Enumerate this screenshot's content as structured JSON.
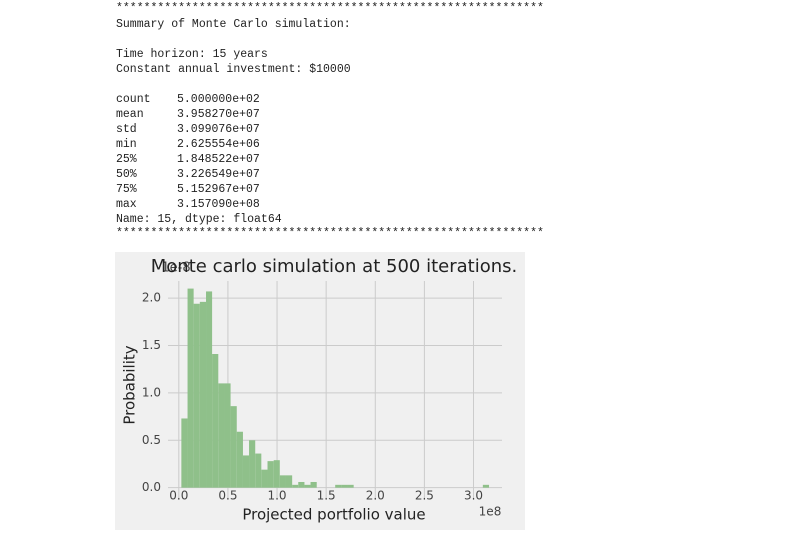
{
  "output": {
    "separator": "**************************************************************",
    "heading": "Summary of Monte Carlo simulation:",
    "horizon": "Time horizon: 15 years",
    "investment": "Constant annual investment: $10000",
    "stats": [
      [
        "count",
        "5.000000e+02"
      ],
      [
        "mean",
        "3.958270e+07"
      ],
      [
        "std",
        "3.099076e+07"
      ],
      [
        "min",
        "2.625554e+06"
      ],
      [
        "25%",
        "1.848522e+07"
      ],
      [
        "50%",
        "3.226549e+07"
      ],
      [
        "75%",
        "5.152967e+07"
      ],
      [
        "max",
        "3.157090e+08"
      ]
    ],
    "footer": "Name: 15, dtype: float64"
  },
  "chart_data": {
    "type": "histogram",
    "title": "Monte carlo simulation at 500 iterations.",
    "x_label": "Projected portfolio value",
    "y_label": "Probability",
    "x_offset_label": "1e8",
    "y_offset_label": "1e-8",
    "color": "#8fc08a",
    "grid": true,
    "bins": [
      0.026,
      0.089,
      0.151,
      0.214,
      0.277,
      0.339,
      0.402,
      0.465,
      0.527,
      0.59,
      0.653,
      0.715,
      0.778,
      0.84,
      0.903,
      0.966,
      1.028,
      1.091,
      1.154,
      1.216,
      1.279,
      1.341,
      1.404,
      1.467,
      1.529,
      1.592,
      1.655,
      1.717,
      1.78,
      1.842,
      1.905,
      1.968,
      2.03,
      2.093,
      2.156,
      2.218,
      2.281,
      2.344,
      2.406,
      2.469,
      2.531,
      2.594,
      2.657,
      2.719,
      2.782,
      2.845,
      2.907,
      2.97,
      3.033,
      3.095,
      3.158
    ],
    "values": [
      0.73,
      2.1,
      1.94,
      1.96,
      2.07,
      1.41,
      1.1,
      1.1,
      0.86,
      0.59,
      0.34,
      0.5,
      0.36,
      0.19,
      0.28,
      0.29,
      0.13,
      0.13,
      0.03,
      0.06,
      0.03,
      0.06,
      0,
      0,
      0,
      0.03,
      0.03,
      0.03,
      0,
      0,
      0,
      0,
      0,
      0,
      0,
      0,
      0,
      0,
      0,
      0,
      0,
      0,
      0,
      0,
      0,
      0,
      0,
      0,
      0,
      0.03
    ],
    "xlim": [
      -0.11,
      3.29
    ],
    "ylim": [
      -0.13,
      2.18
    ],
    "xticks": [
      {
        "value": 0,
        "label": "0.0"
      },
      0.5,
      {
        "value": 1,
        "label": "1.0"
      },
      1.5,
      {
        "value": 2,
        "label": "2.0"
      },
      2.5,
      {
        "value": 3,
        "label": "3.0"
      }
    ],
    "yticks": [
      {
        "value": 0,
        "label": "0.0"
      },
      0.5,
      {
        "value": 1,
        "label": "1.0"
      },
      1.5,
      {
        "value": 2,
        "label": "2.0"
      }
    ]
  }
}
